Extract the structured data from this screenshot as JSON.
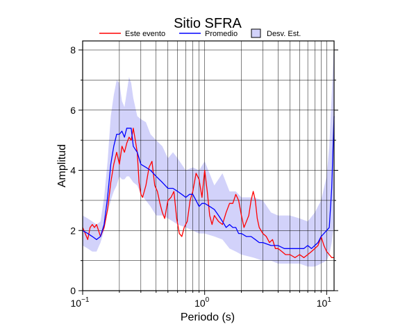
{
  "chart_data": {
    "type": "line",
    "title": "Sitio SFRA",
    "xlabel": "Periodo (s)",
    "ylabel": "Amplitud",
    "x_scale": "log",
    "xlim": [
      0.1,
      11.5
    ],
    "ylim": [
      0,
      8.3
    ],
    "x_ticks": [
      {
        "value": 0.1,
        "base": "10",
        "exp": "−1"
      },
      {
        "value": 1,
        "base": "10",
        "exp": "0"
      },
      {
        "value": 10,
        "base": "10",
        "exp": "1"
      }
    ],
    "y_ticks": [
      0,
      2,
      4,
      6,
      8
    ],
    "grid": true,
    "legend_position": "top-center",
    "legend": [
      {
        "label": "Este evento",
        "kind": "line",
        "color": "#ff0000"
      },
      {
        "label": "Promedio",
        "kind": "line",
        "color": "#0000ff"
      },
      {
        "label": "Desv. Est.",
        "kind": "box",
        "color": "#d2d2fa"
      }
    ],
    "band": {
      "name": "Desv. Est.",
      "color": "#d2d2fa",
      "x": [
        0.1,
        0.11,
        0.12,
        0.13,
        0.14,
        0.15,
        0.16,
        0.17,
        0.18,
        0.19,
        0.2,
        0.21,
        0.22,
        0.23,
        0.24,
        0.25,
        0.26,
        0.28,
        0.3,
        0.33,
        0.36,
        0.4,
        0.45,
        0.5,
        0.55,
        0.6,
        0.7,
        0.8,
        0.9,
        1.0,
        1.2,
        1.4,
        1.6,
        1.8,
        2.0,
        2.5,
        3.0,
        3.5,
        4.0,
        5.0,
        6.0,
        7.0,
        8.0,
        9.0,
        10.0,
        10.5,
        11.0,
        11.5
      ],
      "upper": [
        2.5,
        2.4,
        2.3,
        2.2,
        2.3,
        3.1,
        4.3,
        5.8,
        6.5,
        7.0,
        6.9,
        6.3,
        6.1,
        6.6,
        7.1,
        6.9,
        6.4,
        5.8,
        5.7,
        5.6,
        5.2,
        5.0,
        4.8,
        4.4,
        4.6,
        4.4,
        4.0,
        4.1,
        4.0,
        4.3,
        3.5,
        3.9,
        3.3,
        3.3,
        3.1,
        3.1,
        3.0,
        2.6,
        2.5,
        2.5,
        2.4,
        2.3,
        2.6,
        3.0,
        3.8,
        4.8,
        6.5,
        8.3
      ],
      "lower": [
        1.5,
        1.4,
        1.3,
        1.3,
        1.6,
        2.0,
        2.6,
        3.0,
        3.3,
        3.5,
        3.8,
        3.7,
        3.7,
        3.8,
        3.8,
        3.7,
        3.6,
        3.5,
        3.2,
        3.0,
        2.8,
        2.5,
        2.5,
        2.4,
        2.3,
        2.2,
        2.1,
        2.0,
        1.9,
        1.9,
        1.8,
        1.7,
        1.4,
        1.3,
        1.2,
        1.1,
        1.0,
        1.0,
        0.9,
        0.9,
        0.9,
        0.8,
        0.8,
        0.9,
        1.0,
        1.2,
        1.6,
        2.2
      ]
    },
    "series": [
      {
        "name": "Este evento",
        "color": "#ff0000",
        "x": [
          0.1,
          0.105,
          0.11,
          0.115,
          0.12,
          0.125,
          0.13,
          0.14,
          0.15,
          0.16,
          0.17,
          0.18,
          0.19,
          0.2,
          0.21,
          0.22,
          0.23,
          0.24,
          0.25,
          0.26,
          0.27,
          0.28,
          0.29,
          0.3,
          0.31,
          0.33,
          0.35,
          0.37,
          0.39,
          0.41,
          0.43,
          0.45,
          0.47,
          0.5,
          0.53,
          0.56,
          0.59,
          0.62,
          0.65,
          0.68,
          0.72,
          0.76,
          0.8,
          0.85,
          0.9,
          0.95,
          1.0,
          1.05,
          1.1,
          1.15,
          1.2,
          1.3,
          1.4,
          1.5,
          1.6,
          1.7,
          1.8,
          1.9,
          2.0,
          2.1,
          2.2,
          2.3,
          2.4,
          2.5,
          2.6,
          2.7,
          2.8,
          3.0,
          3.2,
          3.4,
          3.6,
          3.8,
          4.0,
          4.3,
          4.6,
          5.0,
          5.5,
          6.0,
          6.5,
          7.0,
          7.5,
          8.0,
          8.5,
          9.0,
          9.5,
          10.0,
          10.5,
          11.0,
          11.5
        ],
        "y": [
          2.1,
          1.9,
          1.7,
          2.1,
          2.2,
          2.1,
          2.2,
          1.8,
          2.1,
          2.7,
          3.6,
          4.2,
          4.6,
          4.2,
          4.8,
          4.6,
          4.9,
          5.1,
          5.0,
          5.4,
          5.0,
          4.6,
          3.6,
          3.2,
          3.1,
          3.5,
          4.1,
          4.3,
          3.5,
          3.3,
          2.9,
          2.6,
          2.4,
          3.0,
          3.1,
          3.3,
          2.4,
          1.9,
          1.8,
          2.1,
          2.3,
          3.0,
          3.3,
          3.9,
          3.7,
          3.1,
          4.0,
          3.3,
          2.5,
          2.2,
          2.5,
          2.3,
          2.2,
          2.6,
          2.9,
          2.9,
          3.2,
          3.0,
          2.5,
          2.1,
          2.3,
          2.5,
          3.0,
          3.3,
          3.0,
          2.4,
          2.1,
          1.9,
          1.8,
          1.6,
          1.7,
          1.4,
          1.4,
          1.3,
          1.2,
          1.2,
          1.1,
          1.2,
          1.1,
          1.2,
          1.3,
          1.4,
          1.5,
          1.8,
          1.5,
          1.3,
          1.2,
          1.1,
          1.1
        ]
      },
      {
        "name": "Promedio",
        "color": "#0000ff",
        "x": [
          0.1,
          0.11,
          0.12,
          0.13,
          0.14,
          0.15,
          0.16,
          0.17,
          0.18,
          0.19,
          0.2,
          0.21,
          0.22,
          0.23,
          0.24,
          0.25,
          0.26,
          0.28,
          0.3,
          0.33,
          0.36,
          0.4,
          0.45,
          0.5,
          0.55,
          0.6,
          0.65,
          0.7,
          0.75,
          0.8,
          0.85,
          0.9,
          0.95,
          1.0,
          1.1,
          1.2,
          1.3,
          1.4,
          1.5,
          1.6,
          1.7,
          1.8,
          1.9,
          2.0,
          2.2,
          2.4,
          2.6,
          2.8,
          3.0,
          3.5,
          4.0,
          4.5,
          5.0,
          5.5,
          6.0,
          6.5,
          7.0,
          7.5,
          8.0,
          8.5,
          9.0,
          9.5,
          10.0,
          10.5,
          11.0,
          11.5
        ],
        "y": [
          2.0,
          1.9,
          1.8,
          1.7,
          1.8,
          2.2,
          3.1,
          4.2,
          4.8,
          5.2,
          5.2,
          5.3,
          5.1,
          5.4,
          5.4,
          5.4,
          4.8,
          4.6,
          4.2,
          4.1,
          4.0,
          3.8,
          3.6,
          3.4,
          3.4,
          3.3,
          3.2,
          3.1,
          3.2,
          3.2,
          3.0,
          2.8,
          2.9,
          2.9,
          2.8,
          2.7,
          2.5,
          2.3,
          2.1,
          2.2,
          2.1,
          2.1,
          1.9,
          1.9,
          1.8,
          1.8,
          1.7,
          1.6,
          1.6,
          1.5,
          1.5,
          1.4,
          1.4,
          1.4,
          1.4,
          1.4,
          1.5,
          1.4,
          1.5,
          1.6,
          1.8,
          1.9,
          2.0,
          2.1,
          3.4,
          5.8
        ]
      }
    ]
  }
}
